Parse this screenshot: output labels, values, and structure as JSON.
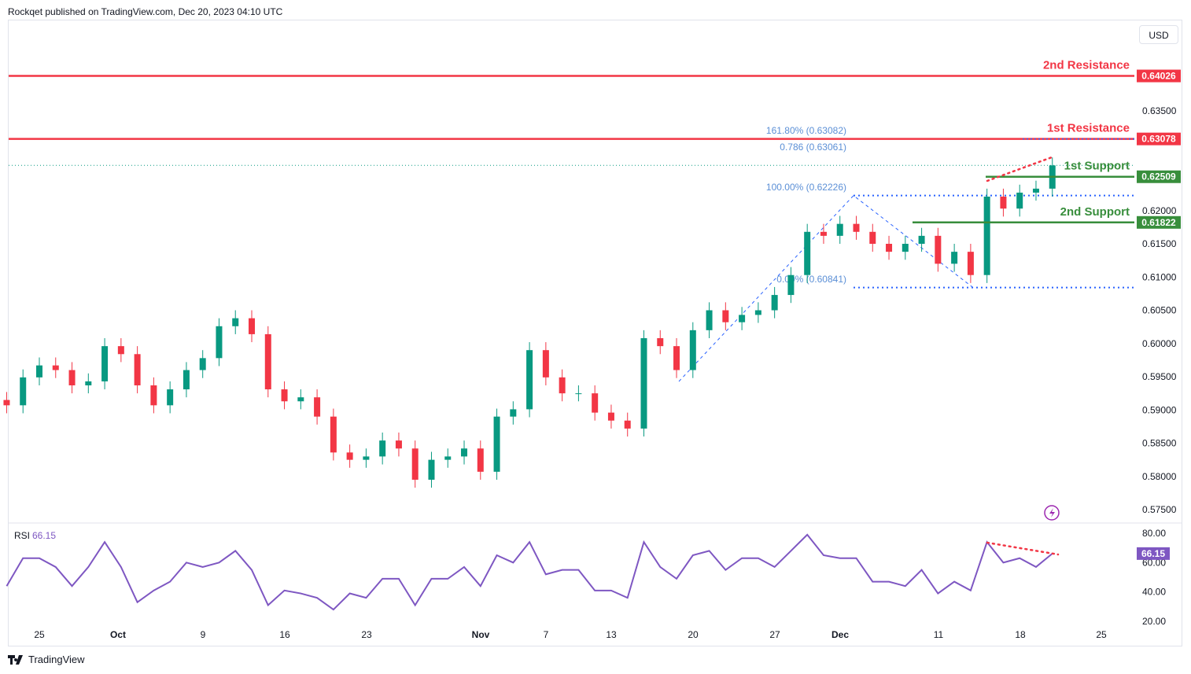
{
  "header": {
    "published": "Rockqet published on TradingView.com, Dec 20, 2023 04:10 UTC"
  },
  "currency_button": "USD",
  "footer": {
    "brand": "TradingView"
  },
  "colors": {
    "up": "#089981",
    "down": "#f23645",
    "resistance": "#f23645",
    "support": "#388e3c",
    "fib": "#2962ff",
    "rsi": "#7e57c2"
  },
  "chart_data": [
    {
      "type": "candlestick",
      "ylim": [
        0.572,
        0.644
      ],
      "y_ticks": [
        "0.63500",
        "0.62000",
        "0.61500",
        "0.61000",
        "0.60500",
        "0.60000",
        "0.59500",
        "0.59000",
        "0.58500",
        "0.58000",
        "0.57500"
      ],
      "x_ticks": [
        "25",
        "Oct",
        "9",
        "16",
        "23",
        "Nov",
        "7",
        "13",
        "20",
        "27",
        "Dec",
        "11",
        "18",
        "25"
      ],
      "dates": [
        "Sep 21",
        "Sep 22",
        "Sep 25",
        "Sep 26",
        "Sep 27",
        "Sep 28",
        "Sep 29",
        "Oct 2",
        "Oct 3",
        "Oct 4",
        "Oct 5",
        "Oct 6",
        "Oct 9",
        "Oct 10",
        "Oct 11",
        "Oct 12",
        "Oct 13",
        "Oct 16",
        "Oct 17",
        "Oct 18",
        "Oct 19",
        "Oct 20",
        "Oct 23",
        "Oct 24",
        "Oct 25",
        "Oct 26",
        "Oct 27",
        "Oct 30",
        "Oct 31",
        "Nov 1",
        "Nov 2",
        "Nov 3",
        "Nov 6",
        "Nov 7",
        "Nov 8",
        "Nov 9",
        "Nov 10",
        "Nov 13",
        "Nov 14",
        "Nov 15",
        "Nov 16",
        "Nov 17",
        "Nov 20",
        "Nov 21",
        "Nov 22",
        "Nov 23",
        "Nov 24",
        "Nov 27",
        "Nov 28",
        "Nov 29",
        "Nov 30",
        "Dec 1",
        "Dec 4",
        "Dec 5",
        "Dec 6",
        "Dec 7",
        "Dec 8",
        "Dec 11",
        "Dec 12",
        "Dec 13",
        "Dec 14",
        "Dec 15",
        "Dec 18",
        "Dec 19",
        "Dec 20"
      ],
      "closes": [
        0.5907,
        0.5949,
        0.5967,
        0.596,
        0.5937,
        0.5943,
        0.5996,
        0.5984,
        0.5937,
        0.5907,
        0.5931,
        0.596,
        0.5978,
        0.6026,
        0.6038,
        0.6014,
        0.5931,
        0.5913,
        0.5919,
        0.589,
        0.5836,
        0.5825,
        0.583,
        0.5854,
        0.5842,
        0.5795,
        0.5825,
        0.583,
        0.5842,
        0.5807,
        0.589,
        0.5901,
        0.599,
        0.5949,
        0.5925,
        0.5925,
        0.5896,
        0.5884,
        0.5872,
        0.6008,
        0.5996,
        0.596,
        0.602,
        0.605,
        0.6032,
        0.6043,
        0.605,
        0.6073,
        0.6103,
        0.6168,
        0.6162,
        0.618,
        0.6168,
        0.615,
        0.6138,
        0.615,
        0.6162,
        0.612,
        0.6138,
        0.6103,
        0.6221,
        0.6203,
        0.6227,
        0.6233,
        0.6268
      ],
      "levels": [
        {
          "label": "2nd Resistance",
          "value": 0.64026,
          "value_label": "0.64026",
          "kind": "resistance"
        },
        {
          "label": "1st Resistance",
          "value": 0.63078,
          "value_label": "0.63078",
          "kind": "resistance"
        },
        {
          "label": "1st Support",
          "value": 0.62509,
          "value_label": "0.62509",
          "kind": "support"
        },
        {
          "label": "2nd Support",
          "value": 0.61822,
          "value_label": "0.61822",
          "kind": "support"
        }
      ],
      "fib": [
        {
          "label": "161.80% (0.63082)",
          "value": 0.63082
        },
        {
          "label": "0.786 (0.63061)",
          "value": 0.63061
        },
        {
          "label": "100.00% (0.62226)",
          "value": 0.62226
        },
        {
          "label": "0.00% (0.60841)",
          "value": 0.60841
        }
      ]
    },
    {
      "type": "line",
      "name": "RSI",
      "current": "66.15",
      "ylim": [
        18,
        85
      ],
      "y_ticks": [
        "80.00",
        "60.00",
        "40.00",
        "20.00"
      ],
      "values": [
        44,
        63,
        63,
        57,
        44,
        57,
        74,
        57,
        33,
        41,
        47,
        60,
        57,
        60,
        68,
        55,
        31,
        41,
        39,
        36,
        28,
        39,
        36,
        49,
        49,
        31,
        49,
        49,
        57,
        44,
        65,
        60,
        74,
        52,
        55,
        55,
        41,
        41,
        36,
        74,
        57,
        49,
        65,
        68,
        55,
        63,
        63,
        57,
        68,
        79,
        65,
        63,
        63,
        47,
        47,
        44,
        55,
        39,
        47,
        41,
        74,
        60,
        63,
        57,
        66.15
      ]
    }
  ]
}
